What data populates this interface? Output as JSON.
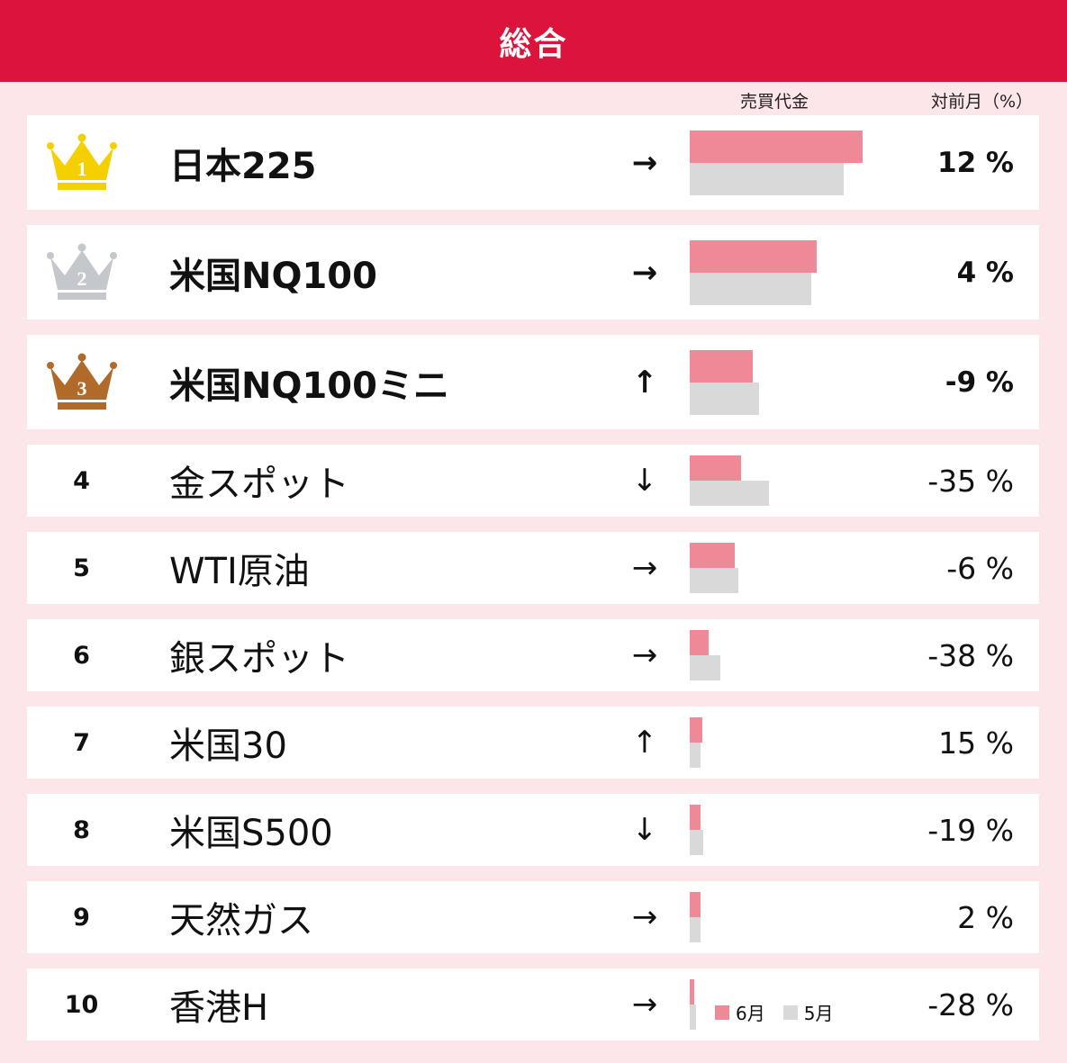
{
  "title": "総合",
  "columns": {
    "volume": "売買代金",
    "mom": "対前月（%）"
  },
  "legend": [
    {
      "label": "6月",
      "color": "#ee8997"
    },
    {
      "label": "5月",
      "color": "#d9d9d9"
    }
  ],
  "crown_colors": [
    "#f5d000",
    "#c4c7cc",
    "#b06a2a"
  ],
  "rows": [
    {
      "rank": "1",
      "name": "日本225",
      "arrow": "→",
      "pct": "12 %"
    },
    {
      "rank": "2",
      "name": "米国NQ100",
      "arrow": "→",
      "pct": "4 %"
    },
    {
      "rank": "3",
      "name": "米国NQ100ミニ",
      "arrow": "↑",
      "pct": "-9 %"
    },
    {
      "rank": "4",
      "name": "金スポット",
      "arrow": "↓",
      "pct": "-35 %"
    },
    {
      "rank": "5",
      "name": "WTI原油",
      "arrow": "→",
      "pct": "-6 %"
    },
    {
      "rank": "6",
      "name": "銀スポット",
      "arrow": "→",
      "pct": "-38 %"
    },
    {
      "rank": "7",
      "name": "米国30",
      "arrow": "↑",
      "pct": "15 %"
    },
    {
      "rank": "8",
      "name": "米国S500",
      "arrow": "↓",
      "pct": "-19 %"
    },
    {
      "rank": "9",
      "name": "天然ガス",
      "arrow": "→",
      "pct": "2 %"
    },
    {
      "rank": "10",
      "name": "香港H",
      "arrow": "→",
      "pct": "-28 %"
    }
  ],
  "chart_data": {
    "type": "bar",
    "categories": [
      "日本225",
      "米国NQ100",
      "米国NQ100ミニ",
      "金スポット",
      "WTI原油",
      "銀スポット",
      "米国30",
      "米国S500",
      "天然ガス",
      "香港H"
    ],
    "series": [
      {
        "name": "6月",
        "values": [
          192,
          141,
          70,
          57,
          50,
          21,
          14,
          12,
          12,
          5
        ]
      },
      {
        "name": "5月",
        "values": [
          171,
          135,
          77,
          88,
          54,
          34,
          12,
          15,
          12,
          7
        ]
      }
    ],
    "xlim": [
      0,
      192
    ],
    "mom_change_pct": [
      12,
      4,
      -9,
      -35,
      -6,
      -38,
      15,
      -19,
      2,
      -28
    ]
  }
}
